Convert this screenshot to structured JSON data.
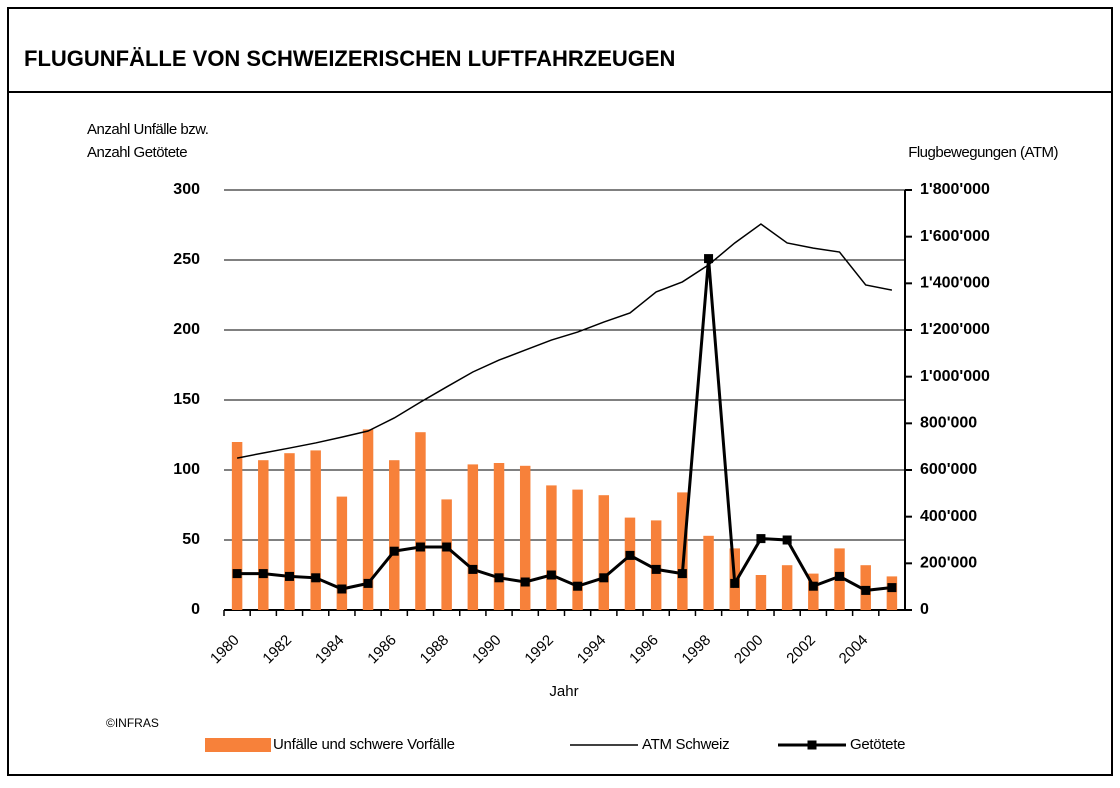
{
  "chart_data": {
    "type": "bar",
    "title": "FLUGUNFÄLLE VON SCHWEIZERISCHEN LUFTFAHRZEUGEN",
    "y_label": [
      "Anzahl Unfälle bzw.",
      "Anzahl Getötete"
    ],
    "y2_label": "Flugbewegungen (ATM)",
    "x_label": "Jahr",
    "source": "©INFRAS",
    "categories": [
      "1980",
      null,
      "1982",
      null,
      "1984",
      null,
      "1986",
      null,
      "1988",
      null,
      "1990",
      null,
      "1992",
      null,
      "1994",
      null,
      "1996",
      null,
      "1998",
      null,
      "2000",
      null,
      "2002",
      null,
      "2004",
      null
    ],
    "ylim": [
      0,
      300
    ],
    "yticks": [
      0,
      50,
      100,
      150,
      200,
      250,
      300
    ],
    "y2lim": [
      0,
      1800000
    ],
    "y2ticks": [
      0,
      {
        "value": 200000,
        "label": "200'000"
      },
      {
        "value": 400000,
        "label": "400'000"
      },
      {
        "value": 600000,
        "label": "600'000"
      },
      {
        "value": 800000,
        "label": "800'000"
      },
      {
        "value": 1000000,
        "label": "1'000'000"
      },
      {
        "value": 1200000,
        "label": "1'200'000"
      },
      {
        "value": 1400000,
        "label": "1'400'000"
      },
      {
        "value": 1600000,
        "label": "1'600'000"
      },
      {
        "value": 1800000,
        "label": "1'800'000"
      }
    ],
    "grid": true,
    "series": [
      {
        "name": "Unfälle und schwere Vorfälle",
        "type": "bar",
        "color": "#f7813a",
        "values": [
          120,
          107,
          112,
          114,
          81,
          129,
          107,
          127,
          79,
          104,
          105,
          103,
          89,
          86,
          82,
          66,
          64,
          84,
          53,
          44,
          25,
          32,
          26,
          44,
          32,
          24
        ]
      },
      {
        "name": "ATM Schweiz",
        "type": "line",
        "color": "#000000",
        "axis": "y2",
        "values": [
          651000,
          673000,
          694000,
          716000,
          741000,
          767000,
          823000,
          891000,
          956000,
          1020000,
          1071000,
          1114000,
          1157000,
          1191000,
          1234000,
          1273000,
          1363000,
          1406000,
          1479000,
          1573000,
          1654000,
          1573000,
          1551000,
          1534000,
          1393000,
          1371000
        ]
      },
      {
        "name": "Getötete",
        "type": "line-marker",
        "color": "#000000",
        "values": [
          26,
          26,
          24,
          23,
          15,
          19,
          42,
          45,
          45,
          29,
          23,
          20,
          25,
          17,
          23,
          39,
          29,
          26,
          251,
          19,
          51,
          50,
          17,
          24,
          14,
          16
        ]
      }
    ]
  }
}
